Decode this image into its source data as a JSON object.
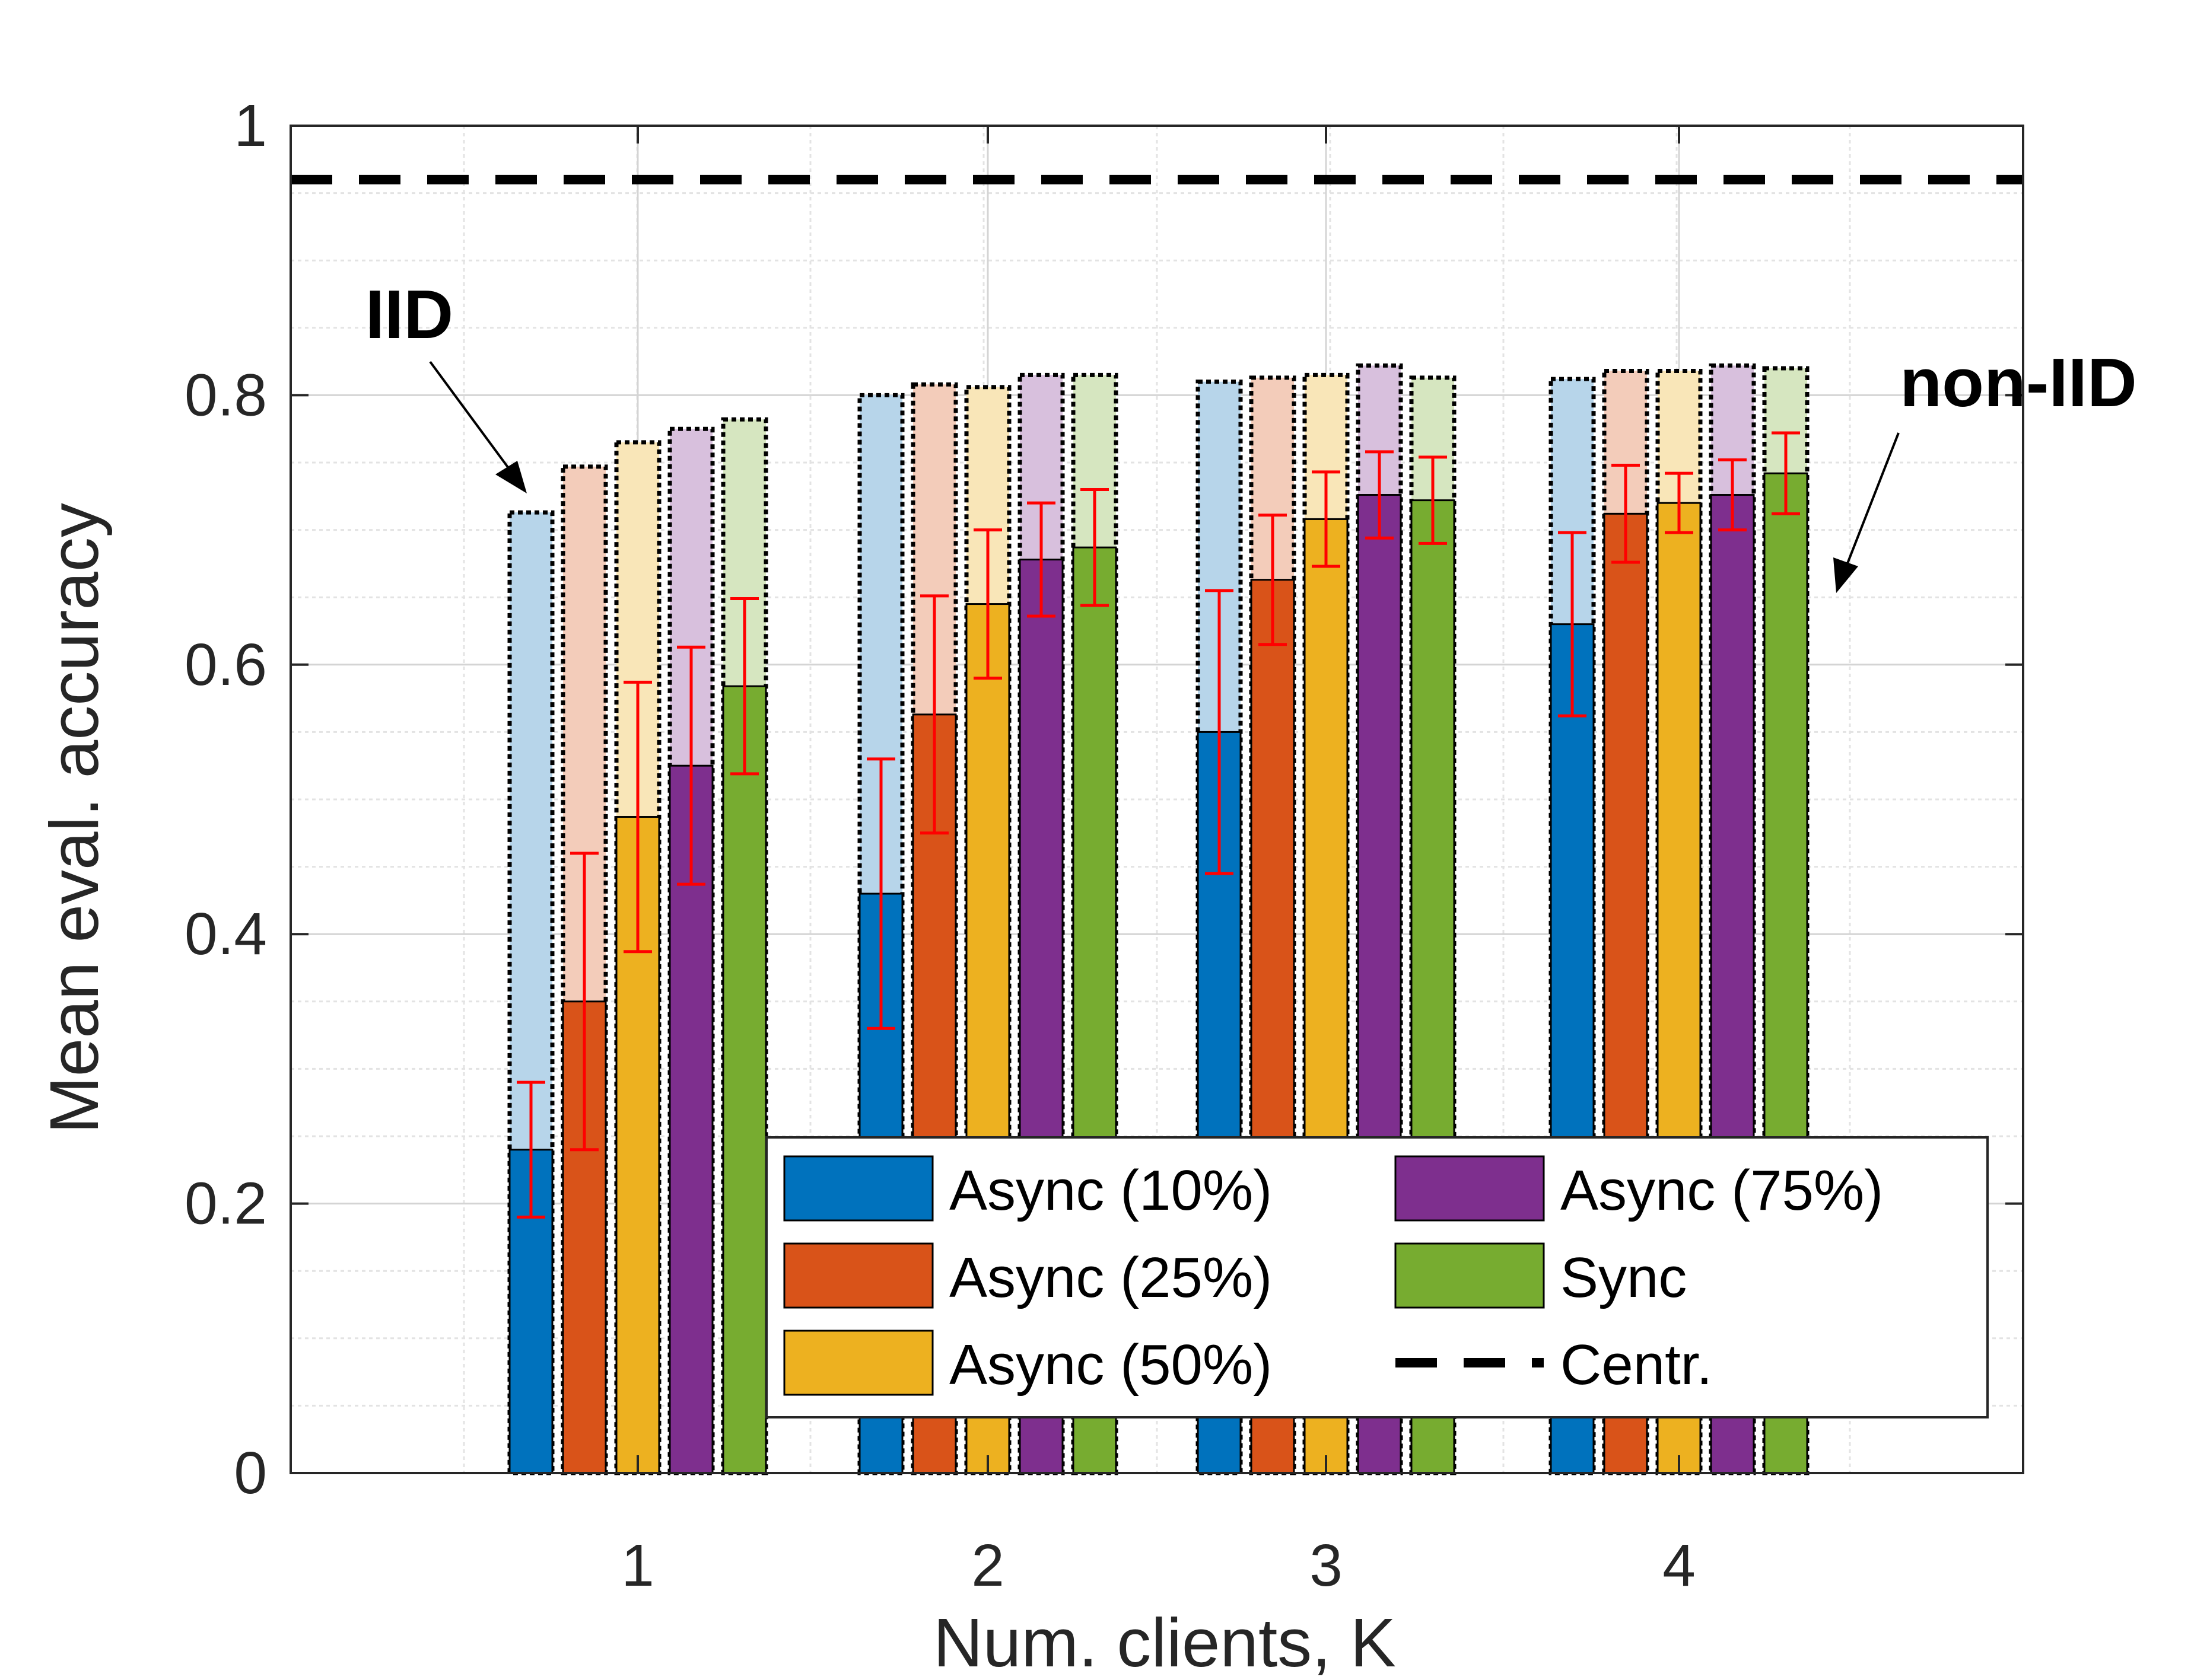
{
  "chart_data": {
    "type": "bar",
    "xlabel": "Num. clients, K",
    "ylabel": "Mean eval. accuracy",
    "categories": [
      "1",
      "2",
      "3",
      "4"
    ],
    "ylim": [
      0,
      1
    ],
    "yticks": [
      "0",
      "0.2",
      "0.4",
      "0.6",
      "0.8",
      "1"
    ],
    "yticks_values": [
      0,
      0.2,
      0.4,
      0.6,
      0.8,
      1
    ],
    "grid": "on (major and minor)",
    "legend_position": "bottom-right",
    "centralized_line": {
      "name": "Centr.",
      "value": 0.96,
      "style": "dashed",
      "color": "#000000"
    },
    "series": [
      {
        "name": "Async (10%)",
        "color": "#0072BD",
        "light_color": "#B7D5EA",
        "non_iid": [
          0.24,
          0.43,
          0.55,
          0.63
        ],
        "non_iid_error": [
          0.05,
          0.1,
          0.105,
          0.068
        ],
        "iid": [
          0.713,
          0.8,
          0.81,
          0.812
        ]
      },
      {
        "name": "Async (25%)",
        "color": "#D95319",
        "light_color": "#F3CCBA",
        "non_iid": [
          0.35,
          0.563,
          0.663,
          0.712
        ],
        "non_iid_error": [
          0.11,
          0.088,
          0.048,
          0.036
        ],
        "iid": [
          0.747,
          0.808,
          0.813,
          0.818
        ]
      },
      {
        "name": "Async (50%)",
        "color": "#EDB120",
        "light_color": "#F9E6B8",
        "non_iid": [
          0.487,
          0.645,
          0.708,
          0.72
        ],
        "non_iid_error": [
          0.1,
          0.055,
          0.035,
          0.022
        ],
        "iid": [
          0.765,
          0.806,
          0.815,
          0.818
        ]
      },
      {
        "name": "Async (75%)",
        "color": "#7E2F8E",
        "light_color": "#D8C0DD",
        "non_iid": [
          0.525,
          0.678,
          0.726,
          0.726
        ],
        "non_iid_error": [
          0.088,
          0.042,
          0.032,
          0.026
        ],
        "iid": [
          0.775,
          0.815,
          0.822,
          0.822
        ]
      },
      {
        "name": "Sync",
        "color": "#77AC30",
        "light_color": "#D6E6C0",
        "non_iid": [
          0.584,
          0.687,
          0.722,
          0.742
        ],
        "non_iid_error": [
          0.065,
          0.043,
          0.032,
          0.03
        ],
        "iid": [
          0.782,
          0.815,
          0.813,
          0.82
        ]
      }
    ],
    "annotations": [
      {
        "text": "IID"
      },
      {
        "text": "non-IID"
      }
    ]
  }
}
